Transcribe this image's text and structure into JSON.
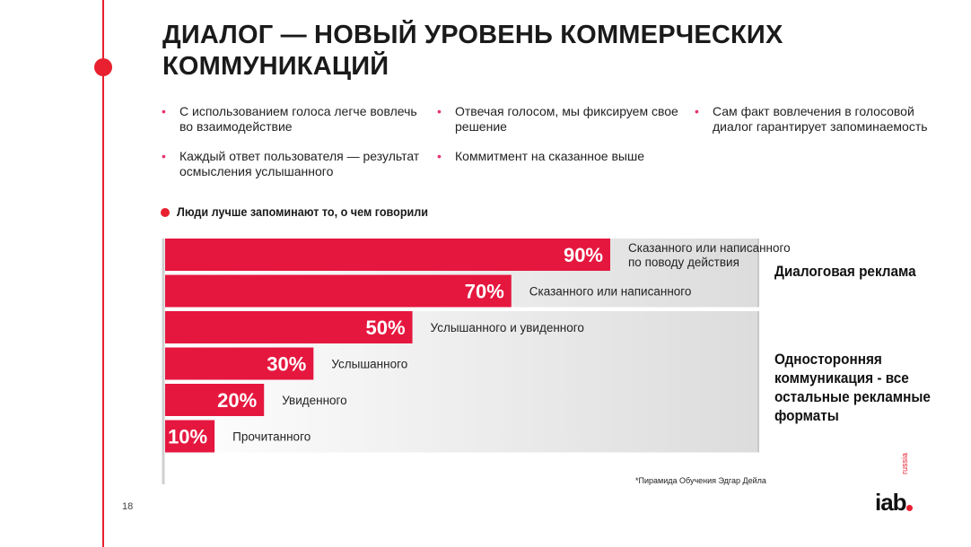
{
  "slide": {
    "title": "ДИАЛОГ — НОВЫЙ УРОВЕНЬ КОММЕРЧЕСКИХ КОММУНИКАЦИЙ",
    "bullets": [
      {
        "text": "С использованием голоса легче вовлечь во взаимодействие"
      },
      {
        "text": "Отвечая голосом, мы фиксируем свое решение"
      },
      {
        "text": "Сам факт вовлечения в голосовой диалог гарантирует запоминаемость"
      },
      {
        "text": "Каждый ответ пользователя — результат осмысления услышанного"
      },
      {
        "text": "Коммитмент на сказанное выше"
      }
    ],
    "bullet_marker": "•",
    "footnote": "*Пирамида Обучения Эдгар Дейла",
    "page_number": "18",
    "logo": {
      "main": "iab",
      "sub": "russia"
    }
  },
  "colors": {
    "accent": "#e8202f",
    "bar": "#e5173f",
    "bullet": "#e8336e"
  },
  "chart_data": {
    "type": "bar",
    "orientation": "horizontal",
    "title": "Люди лучше запоминают то, о чем говорили",
    "xlim": [
      0,
      100
    ],
    "bars": [
      {
        "value": 90,
        "value_label": "90%",
        "label": "Сказанного или написанного по поводу действия"
      },
      {
        "value": 70,
        "value_label": "70%",
        "label": "Сказанного или написанного"
      },
      {
        "value": 50,
        "value_label": "50%",
        "label": "Услышанного и увиденного"
      },
      {
        "value": 30,
        "value_label": "30%",
        "label": "Услышанного"
      },
      {
        "value": 20,
        "value_label": "20%",
        "label": "Увиденного"
      },
      {
        "value": 10,
        "value_label": "10%",
        "label": "Прочитанного"
      }
    ],
    "groups": [
      {
        "label": "Диалоговая реклама",
        "bars": [
          0,
          1
        ]
      },
      {
        "label": "Односторонняя коммуникация - все остальные рекламные форматы",
        "bars": [
          2,
          3,
          4,
          5
        ]
      }
    ]
  }
}
